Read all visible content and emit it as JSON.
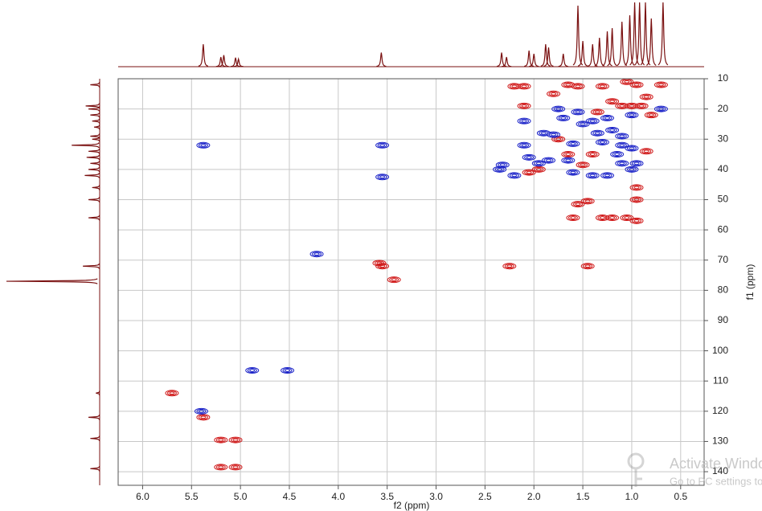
{
  "chart_data": {
    "type": "contour",
    "xlabel": "f2 (ppm)",
    "ylabel": "f1 (ppm)",
    "xlim": [
      6.25,
      0.26
    ],
    "ylim": [
      144.5,
      10
    ],
    "xticks": [
      {
        "value": 6,
        "label": "6.0"
      },
      5.5,
      {
        "value": 5,
        "label": "5.0"
      },
      4.5,
      {
        "value": 4,
        "label": "4.0"
      },
      3.5,
      {
        "value": 3,
        "label": "3.0"
      },
      2.5,
      {
        "value": 2,
        "label": "2.0"
      },
      1.5,
      {
        "value": 1,
        "label": "1.0"
      },
      0.5
    ],
    "yticks": [
      10,
      20,
      30,
      40,
      50,
      60,
      70,
      80,
      90,
      100,
      110,
      120,
      130,
      140
    ],
    "grid": true,
    "series": [
      {
        "color": "#d01818",
        "x": [
          5.7,
          5.38,
          5.2,
          5.05,
          5.2,
          5.05,
          3.55,
          3.58,
          3.43,
          2.25,
          2.2,
          2.1,
          2.1,
          1.65,
          1.55,
          1.3,
          1.05,
          0.95,
          0.7,
          0.85,
          0.9,
          1.0,
          1.1,
          0.8,
          1.2,
          0.85,
          0.95,
          0.95,
          1.45,
          1.55,
          1.6,
          1.3,
          1.05,
          0.95,
          1.2,
          2.05,
          1.95,
          1.75,
          1.4,
          1.5,
          1.65,
          1.35,
          1.8,
          1.45
        ],
        "y": [
          114,
          122,
          129.5,
          129.5,
          138.5,
          138.5,
          72,
          71,
          76.5,
          72,
          12.5,
          12.5,
          19,
          12,
          12.5,
          12.5,
          11,
          12,
          12,
          16,
          19,
          19,
          19,
          22,
          17.5,
          34,
          46,
          50,
          50.5,
          51.5,
          56,
          56,
          56,
          57,
          56,
          41,
          40,
          30,
          35,
          38.5,
          35,
          21,
          15,
          72
        ]
      },
      {
        "color": "#1a22c8",
        "x": [
          5.4,
          5.38,
          4.88,
          4.52,
          4.22,
          3.55,
          3.55,
          2.32,
          2.2,
          2.35,
          2.1,
          2.05,
          2.1,
          1.9,
          1.8,
          1.85,
          1.95,
          1.7,
          1.55,
          1.5,
          1.4,
          1.6,
          1.35,
          1.3,
          1.2,
          1.1,
          1.1,
          1.15,
          1.0,
          0.95,
          1.1,
          1.0,
          1.4,
          1.6,
          1.65,
          1.25,
          1.75,
          1.25,
          1.0,
          0.7
        ],
        "y": [
          120,
          32,
          106.5,
          106.5,
          68,
          32,
          42.5,
          38.5,
          42,
          40,
          32,
          36,
          24,
          28,
          28.5,
          37,
          38,
          23,
          21,
          25,
          24,
          31.5,
          28,
          31,
          27,
          29,
          32,
          35,
          33,
          38,
          38,
          40,
          42,
          41,
          37,
          42,
          20,
          23,
          22,
          20
        ]
      }
    ],
    "top_spectrum": {
      "color": "#7a1010",
      "ppm": [
        5.38,
        5.2,
        5.17,
        5.05,
        5.02,
        3.56,
        2.33,
        2.28,
        2.05,
        2.0,
        1.88,
        1.85,
        1.7,
        1.55,
        1.5,
        1.4,
        1.33,
        1.25,
        1.2,
        1.1,
        1.02,
        0.97,
        0.92,
        0.86,
        0.8,
        0.68
      ],
      "intensity": [
        35,
        15,
        18,
        14,
        12,
        22,
        22,
        15,
        25,
        20,
        35,
        30,
        20,
        95,
        40,
        35,
        45,
        55,
        60,
        70,
        80,
        100,
        100,
        100,
        75,
        100
      ]
    },
    "left_spectrum": {
      "color": "#7a1010",
      "ppm": [
        12,
        19,
        20,
        22,
        24,
        26,
        29,
        30,
        32,
        34,
        36,
        38,
        40,
        42,
        46,
        50,
        56,
        72,
        77,
        114,
        122,
        129,
        139
      ],
      "intensity": [
        10,
        15,
        12,
        10,
        8,
        6,
        10,
        8,
        30,
        12,
        14,
        10,
        12,
        16,
        8,
        12,
        12,
        18,
        100,
        4,
        12,
        10,
        10
      ]
    },
    "watermark": [
      "Activate Windows",
      "Go to PC settings to activate Windows."
    ]
  }
}
